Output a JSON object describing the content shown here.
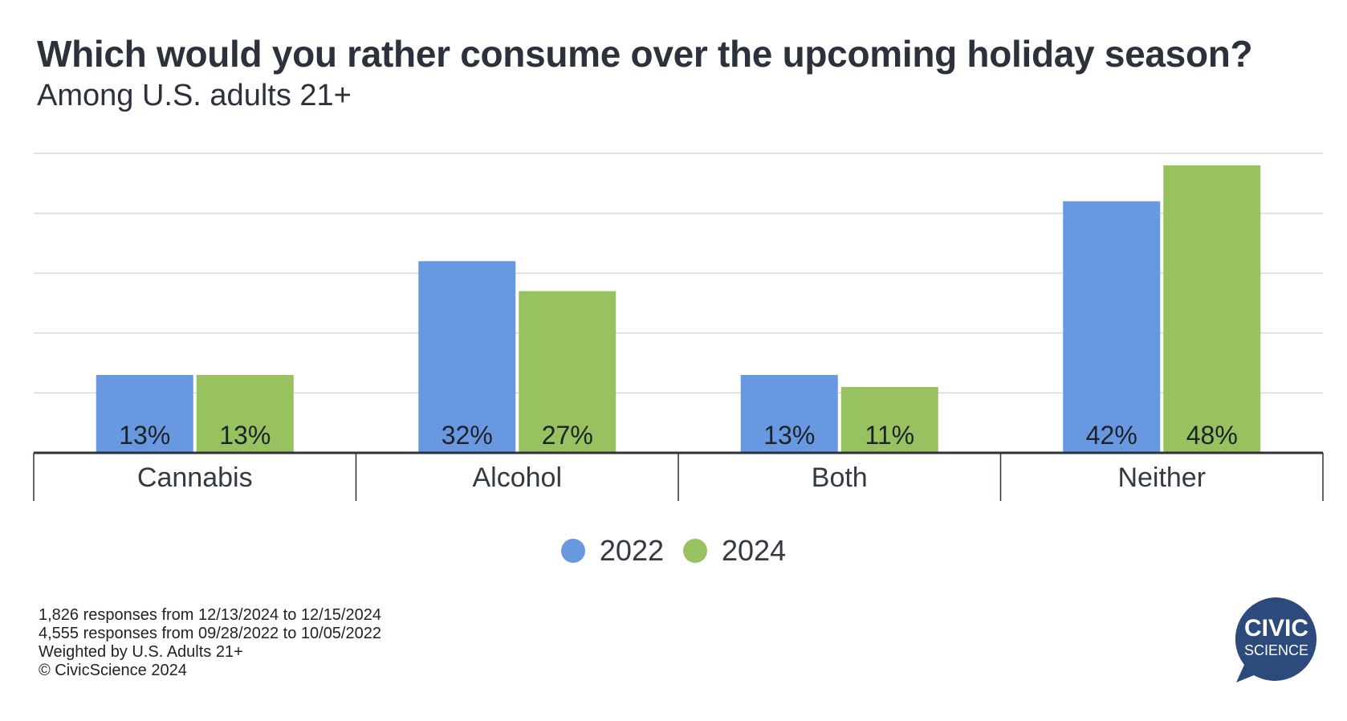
{
  "header": {
    "title": "Which would you rather consume over the upcoming holiday season?",
    "subtitle": "Among U.S. adults 21+"
  },
  "chart_data": {
    "type": "bar",
    "title": "Which would you rather consume over the upcoming holiday season?",
    "subtitle": "Among U.S. adults 21+",
    "categories": [
      "Cannabis",
      "Alcohol",
      "Both",
      "Neither"
    ],
    "series": [
      {
        "name": "2022",
        "color": "#6899e0",
        "values": [
          13,
          32,
          13,
          42
        ],
        "labels": [
          "13%",
          "32%",
          "13%",
          "42%"
        ]
      },
      {
        "name": "2024",
        "color": "#98c160",
        "values": [
          13,
          27,
          11,
          48
        ],
        "labels": [
          "13%",
          "27%",
          "11%",
          "48%"
        ]
      }
    ],
    "xlabel": "",
    "ylabel": "",
    "ylim": [
      0,
      50
    ],
    "grid": true,
    "legend": "bottom-center"
  },
  "footnotes": {
    "lines": [
      "1,826 responses from 12/13/2024 to 12/15/2024",
      "4,555 responses from 09/28/2022 to 10/05/2022",
      "Weighted by U.S. Adults 21+",
      "© CivicScience 2024"
    ]
  },
  "logo": {
    "line1": "CIVIC",
    "line2": "SCIENCE",
    "color": "#2c4b7c"
  }
}
